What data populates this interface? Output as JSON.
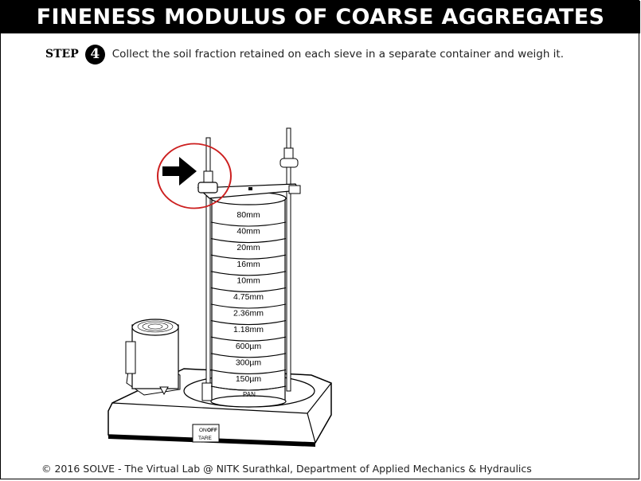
{
  "header": {
    "title": "FINENESS MODULUS OF COARSE AGGREGATES"
  },
  "step": {
    "word": "STEP",
    "number": "4",
    "instruction": "Collect the soil fraction retained on each sieve in a separate container and weigh it."
  },
  "apparatus": {
    "sieves": [
      "80mm",
      "40mm",
      "20mm",
      "16mm",
      "10mm",
      "4.75mm",
      "2.36mm",
      "1.18mm",
      "600µm",
      "300µm",
      "150µm"
    ],
    "pan_label": "PAN",
    "switch": {
      "on_label": "ON",
      "off_label": "OFF",
      "tare_label": "TARE"
    },
    "highlight_color": "#cc1f1f",
    "pointer_icon": "right-arrow-icon"
  },
  "footer": {
    "text": "© 2016 SOLVE - The Virtual Lab @ NITK Surathkal, Department of Applied Mechanics & Hydraulics"
  }
}
